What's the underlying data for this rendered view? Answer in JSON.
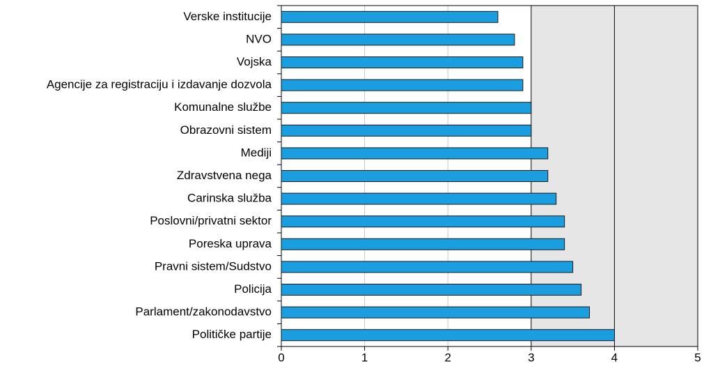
{
  "chart_data": {
    "type": "bar",
    "orientation": "horizontal",
    "categories": [
      "Verske institucije",
      "NVO",
      "Vojska",
      "Agencije za registraciju i izdavanje dozvola",
      "Komunalne službe",
      "Obrazovni sistem",
      "Mediji",
      "Zdravstvena nega",
      "Carinska služba",
      "Poslovni/privatni sektor",
      "Poreska uprava",
      "Pravni sistem/Sudstvo",
      "Policija",
      "Parlament/zakonodavstvo",
      "Političke partije"
    ],
    "values": [
      2.6,
      2.8,
      2.9,
      2.9,
      3.0,
      3.0,
      3.2,
      3.2,
      3.3,
      3.4,
      3.4,
      3.5,
      3.6,
      3.7,
      4.0
    ],
    "color": "#1a9ee0",
    "xlim": [
      0,
      5
    ],
    "xticks": [
      0,
      1,
      2,
      3,
      4,
      5
    ],
    "grid": true
  }
}
